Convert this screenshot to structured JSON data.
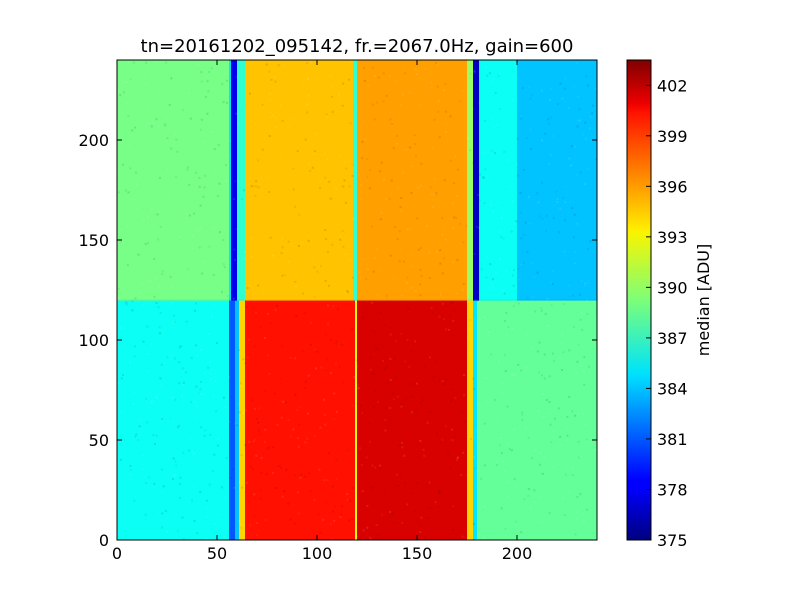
{
  "chart_data": {
    "type": "heatmap",
    "title": "tn=20161202_095142, fr.=2067.0Hz, gain=600",
    "xlabel": "",
    "ylabel": "",
    "xlim": [
      0,
      240
    ],
    "ylim": [
      0,
      240
    ],
    "x_ticks": [
      "0",
      "50",
      "100",
      "150",
      "200"
    ],
    "y_ticks": [
      "0",
      "50",
      "100",
      "150",
      "200"
    ],
    "colormap": "jet",
    "colorbar": {
      "label": "median [ADU]",
      "range": [
        375,
        403.5
      ],
      "ticks": [
        "375",
        "378",
        "381",
        "384",
        "387",
        "390",
        "393",
        "396",
        "399",
        "402"
      ]
    },
    "grid": false,
    "regions": [
      {
        "x": [
          0,
          56
        ],
        "y": [
          0,
          120
        ],
        "value": 386
      },
      {
        "x": [
          56,
          59
        ],
        "y": [
          0,
          120
        ],
        "value": 381
      },
      {
        "x": [
          59,
          61
        ],
        "y": [
          0,
          120
        ],
        "value": 384
      },
      {
        "x": [
          61,
          64
        ],
        "y": [
          0,
          120
        ],
        "value": 394
      },
      {
        "x": [
          64,
          119
        ],
        "y": [
          0,
          120
        ],
        "value": 399.5
      },
      {
        "x": [
          119,
          120
        ],
        "y": [
          0,
          120
        ],
        "value": 393
      },
      {
        "x": [
          120,
          175
        ],
        "y": [
          0,
          120
        ],
        "value": 401
      },
      {
        "x": [
          175,
          178
        ],
        "y": [
          0,
          120
        ],
        "value": 394
      },
      {
        "x": [
          178,
          180
        ],
        "y": [
          0,
          120
        ],
        "value": 385
      },
      {
        "x": [
          180,
          240
        ],
        "y": [
          0,
          120
        ],
        "value": 388.5
      },
      {
        "x": [
          0,
          56
        ],
        "y": [
          120,
          240
        ],
        "value": 389
      },
      {
        "x": [
          56,
          57
        ],
        "y": [
          120,
          240
        ],
        "value": 385
      },
      {
        "x": [
          57,
          60
        ],
        "y": [
          120,
          240
        ],
        "value": 378
      },
      {
        "x": [
          60,
          64
        ],
        "y": [
          120,
          240
        ],
        "value": 387
      },
      {
        "x": [
          64,
          118
        ],
        "y": [
          120,
          240
        ],
        "value": 394.5
      },
      {
        "x": [
          118,
          120
        ],
        "y": [
          120,
          240
        ],
        "value": 387
      },
      {
        "x": [
          120,
          175
        ],
        "y": [
          120,
          240
        ],
        "value": 395.5
      },
      {
        "x": [
          175,
          178
        ],
        "y": [
          120,
          240
        ],
        "value": 390
      },
      {
        "x": [
          178,
          181
        ],
        "y": [
          120,
          240
        ],
        "value": 377
      },
      {
        "x": [
          181,
          200
        ],
        "y": [
          120,
          240
        ],
        "value": 386
      },
      {
        "x": [
          200,
          240
        ],
        "y": [
          120,
          240
        ],
        "value": 384
      }
    ]
  }
}
